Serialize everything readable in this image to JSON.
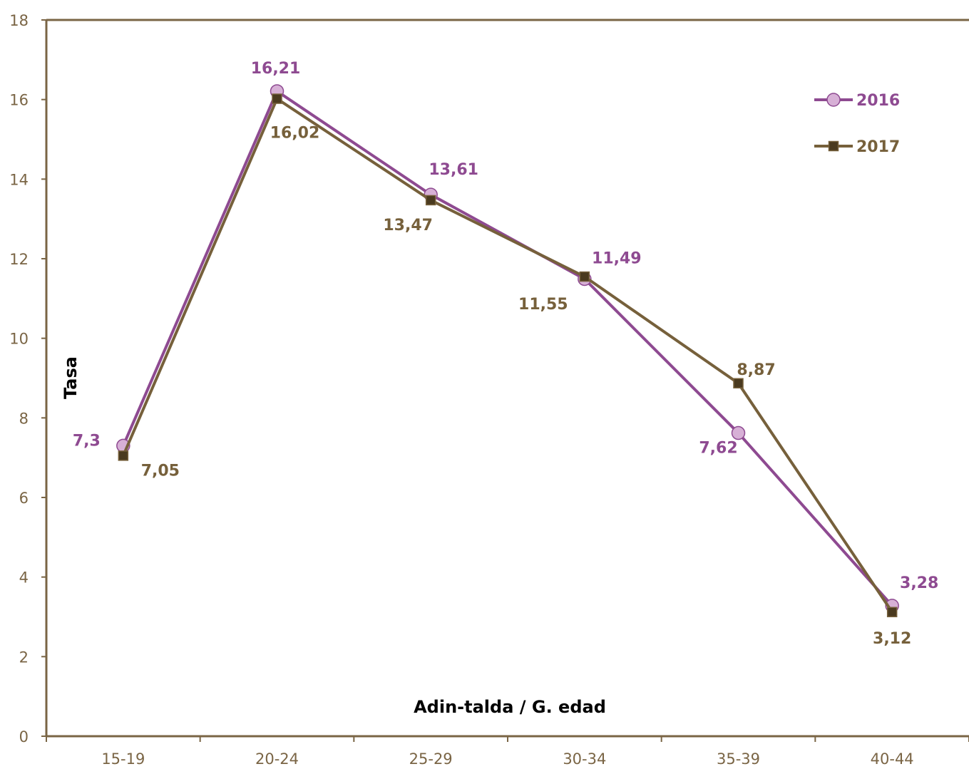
{
  "chart_data": {
    "type": "line",
    "title": "",
    "xlabel": "Adin-talda / G. edad",
    "ylabel": "Tasa",
    "categories": [
      "15-19",
      "20-24",
      "25-29",
      "30-34",
      "35-39",
      "40-44"
    ],
    "ylim": [
      0,
      18
    ],
    "yticks": [
      0,
      2,
      4,
      6,
      8,
      10,
      12,
      14,
      16,
      18
    ],
    "grid": false,
    "legend_position": "top-right",
    "series": [
      {
        "name": "2016",
        "values": [
          7.3,
          16.21,
          13.61,
          11.49,
          7.62,
          3.28
        ],
        "labels": [
          "7,3",
          "16,21",
          "13,61",
          "11,49",
          "7,62",
          "3,28"
        ],
        "marker": "circle",
        "color": "#8e4a91",
        "marker_fill": "#d7b0d6"
      },
      {
        "name": "2017",
        "values": [
          7.05,
          16.02,
          13.47,
          11.55,
          8.87,
          3.12
        ],
        "labels": [
          "7,05",
          "16,02",
          "13,47",
          "11,55",
          "8,87",
          "3,12"
        ],
        "marker": "square",
        "color": "#76603b",
        "marker_fill": "#4a3a1f"
      }
    ],
    "colors": {
      "axis": "#7a6545",
      "tick_text": "#7a6545"
    }
  }
}
